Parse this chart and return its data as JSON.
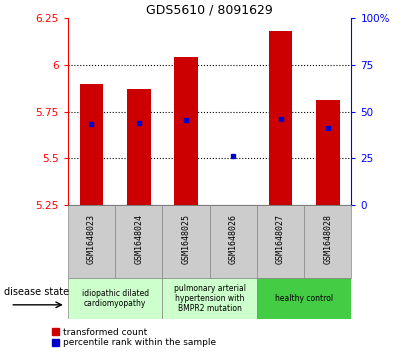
{
  "title": "GDS5610 / 8091629",
  "samples": [
    "GSM1648023",
    "GSM1648024",
    "GSM1648025",
    "GSM1648026",
    "GSM1648027",
    "GSM1648028"
  ],
  "transformed_counts": [
    5.9,
    5.87,
    6.04,
    5.245,
    6.18,
    5.81
  ],
  "percentile_values": [
    5.685,
    5.69,
    5.705,
    5.515,
    5.71,
    5.665
  ],
  "ylim_left": [
    5.25,
    6.25
  ],
  "yticks_left": [
    5.25,
    5.5,
    5.75,
    6.0,
    6.25
  ],
  "ytick_labels_left": [
    "5.25",
    "5.5",
    "5.75",
    "6",
    "6.25"
  ],
  "yticks_right_vals": [
    0,
    25,
    50,
    75,
    100
  ],
  "ytick_labels_right": [
    "0",
    "25",
    "50",
    "75",
    "100%"
  ],
  "bar_color": "#cc0000",
  "dot_color": "#0000cc",
  "bar_bottom": 5.25,
  "grid_ticks": [
    5.5,
    5.75,
    6.0
  ],
  "group_ranges": [
    [
      0,
      2
    ],
    [
      2,
      4
    ],
    [
      4,
      6
    ]
  ],
  "group_labels": [
    "idiopathic dilated\ncardiomyopathy",
    "pulmonary arterial\nhypertension with\nBMPR2 mutation",
    "healthy control"
  ],
  "group_colors": [
    "#ccffcc",
    "#ccffcc",
    "#44cc44"
  ],
  "disease_state_label": "disease state",
  "legend_labels": [
    "transformed count",
    "percentile rank within the sample"
  ],
  "legend_colors": [
    "#cc0000",
    "#0000cc"
  ],
  "bar_width": 0.5,
  "sample_bg_color": "#cccccc",
  "fig_width": 4.11,
  "fig_height": 3.63,
  "dpi": 100
}
